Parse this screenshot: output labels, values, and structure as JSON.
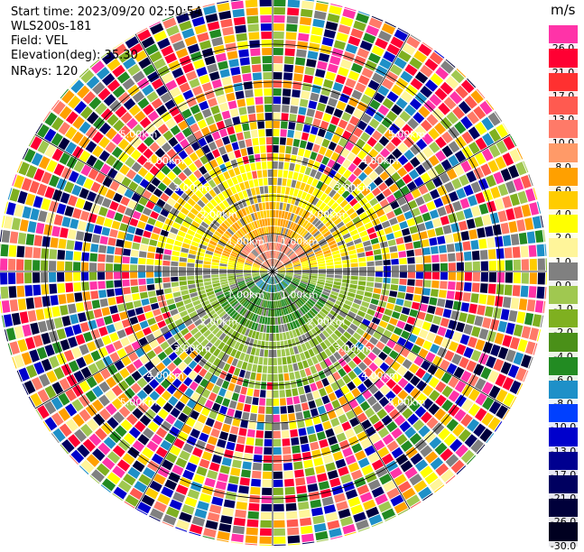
{
  "info": {
    "start_time": "Start time: 2023/09/20 02:50:54",
    "instrument": "WLS200s-181",
    "field": "Field: VEL",
    "elevation": "Elevation(deg): 35.30",
    "nrays": "NRays: 120"
  },
  "chart_data": {
    "type": "heatmap",
    "projection": "polar PPI",
    "field": "VEL",
    "nrays": 120,
    "ring_labels": [
      "1.00km",
      "2.00km",
      "3.00km",
      "4.00km",
      "5.00km"
    ],
    "colorbar": {
      "unit": "m/s",
      "levels": [
        "26.0",
        "21.0",
        "17.0",
        "13.0",
        "10.0",
        "8.0",
        "6.0",
        "4.0",
        "2.0",
        "1.0",
        "0.0",
        "-1.0",
        "-2.0",
        "-4.0",
        "-6.0",
        "-8.0",
        "-10.0",
        "-13.0",
        "-17.0",
        "-21.0",
        "-26.0",
        "-30.0"
      ],
      "colors": [
        "#ff33a8",
        "#ff0033",
        "#ff3030",
        "#ff5a50",
        "#ff7a68",
        "#ff9a68",
        "#ffa000",
        "#ffcc00",
        "#ffff00",
        "#fff59a",
        "#808080",
        "#a0c850",
        "#7fb020",
        "#4a9018",
        "#228b22",
        "#1e90c8",
        "#0040ff",
        "#0000cc",
        "#000090",
        "#000060",
        "#00003a",
        "#000020"
      ]
    }
  }
}
